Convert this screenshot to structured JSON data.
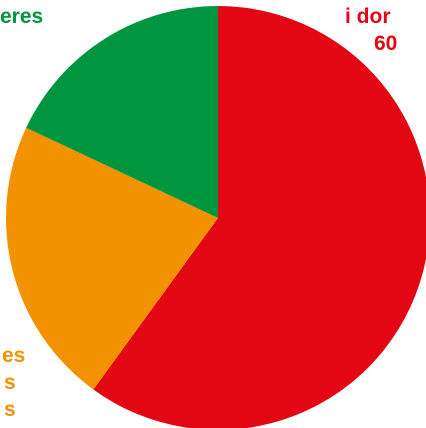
{
  "chart_data": {
    "type": "pie",
    "title": "",
    "colors": {
      "red": "#e30613",
      "orange": "#f39200",
      "green": "#009640"
    },
    "slices": [
      {
        "label_lines": [
          "i dor",
          "60"
        ],
        "value": 60,
        "color": "#e30613"
      },
      {
        "label_lines": [
          "es",
          "s",
          "s"
        ],
        "value": 22,
        "color": "#f39200"
      },
      {
        "label_lines": [
          "eres"
        ],
        "value": 18,
        "color": "#009640"
      }
    ]
  }
}
